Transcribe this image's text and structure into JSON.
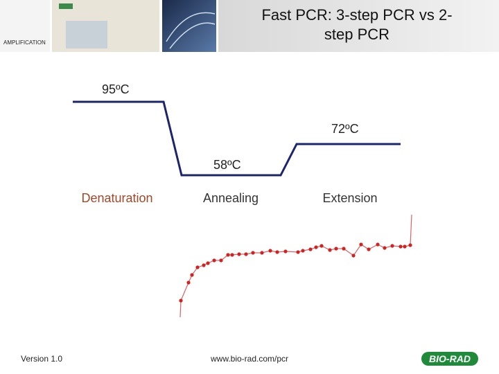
{
  "header": {
    "title": "Fast PCR: 3-step PCR vs 2-step PCR",
    "section": "AMPLIFICATION"
  },
  "diagram": {
    "temperatures": [
      "95ºC",
      "72ºC",
      "58ºC"
    ],
    "steps": [
      "Denaturation",
      "Annealing",
      "Extension"
    ]
  },
  "footer": {
    "version": "Version 1.0",
    "url": "www.bio-rad.com/pcr",
    "logo": "BIO-RAD"
  }
}
